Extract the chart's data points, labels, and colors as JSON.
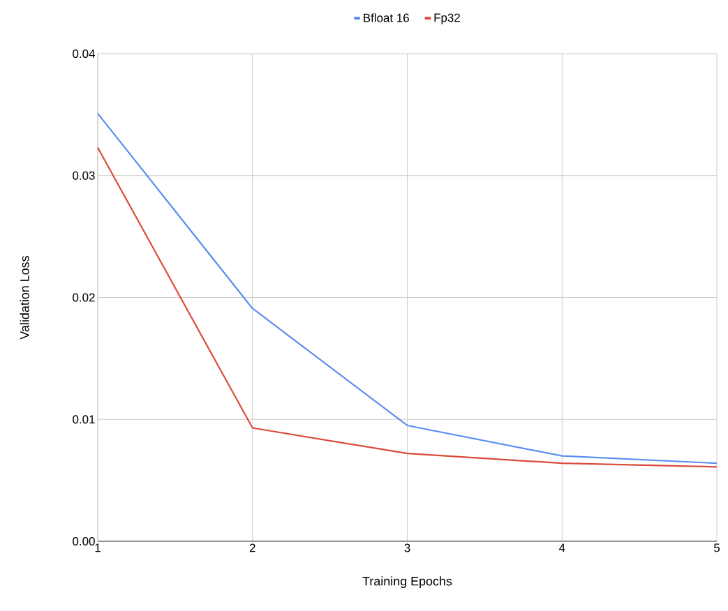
{
  "chart_data": {
    "type": "line",
    "xlabel": "Training Epochs",
    "ylabel": "Validation Loss",
    "x": [
      1,
      2,
      3,
      4,
      5
    ],
    "series": [
      {
        "name": "Bfloat 16",
        "color": "#5a8ef0",
        "values": [
          0.0351,
          0.0191,
          0.0095,
          0.007,
          0.0064
        ]
      },
      {
        "name": "Fp32",
        "color": "#db4a3c",
        "values": [
          0.0323,
          0.0093,
          0.0072,
          0.0064,
          0.0061
        ]
      }
    ],
    "xlim": [
      1,
      5
    ],
    "xticks": [
      1,
      2,
      3,
      4,
      5
    ],
    "ylim": [
      0,
      0.04
    ],
    "yticks": [
      {
        "value": 0,
        "label": "0.00"
      },
      0.01,
      0.02,
      0.03,
      0.04
    ],
    "grid": true,
    "legend": "top",
    "marker": "none",
    "line_style": "solid"
  }
}
